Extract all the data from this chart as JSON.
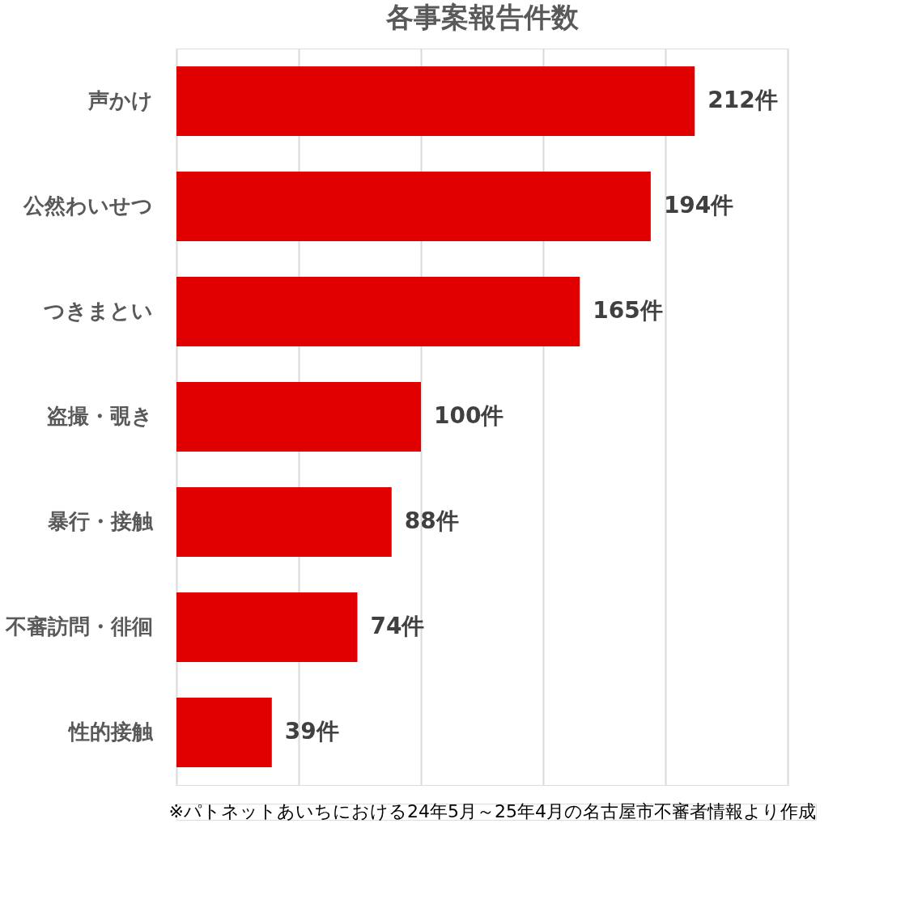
{
  "chart_data": {
    "type": "bar",
    "orientation": "horizontal",
    "title": "各事案報告件数",
    "categories": [
      "声かけ",
      "公然わいせつ",
      "つきまとい",
      "盗撮・覗き",
      "暴行・接触",
      "不審訪問・徘徊",
      "性的接触"
    ],
    "values": [
      212,
      194,
      165,
      100,
      88,
      74,
      39
    ],
    "value_labels": [
      "212件",
      "194件",
      "165件",
      "100件",
      "88件",
      "74件",
      "39件"
    ],
    "color": "#e00000",
    "xlim": [
      0,
      250
    ],
    "xticks": [
      {
        "value": 0,
        "label": null
      },
      {
        "value": 50,
        "label": null
      },
      {
        "value": 100,
        "label": null
      },
      {
        "value": 150,
        "label": null
      },
      {
        "value": 200,
        "label": null
      },
      {
        "value": 250,
        "label": null
      }
    ],
    "grid": "x",
    "tick_labels": "y",
    "annotations": [
      "※パトネットあいちにおける24年5月～25年4月の名古屋市不審者情報より作成"
    ]
  }
}
